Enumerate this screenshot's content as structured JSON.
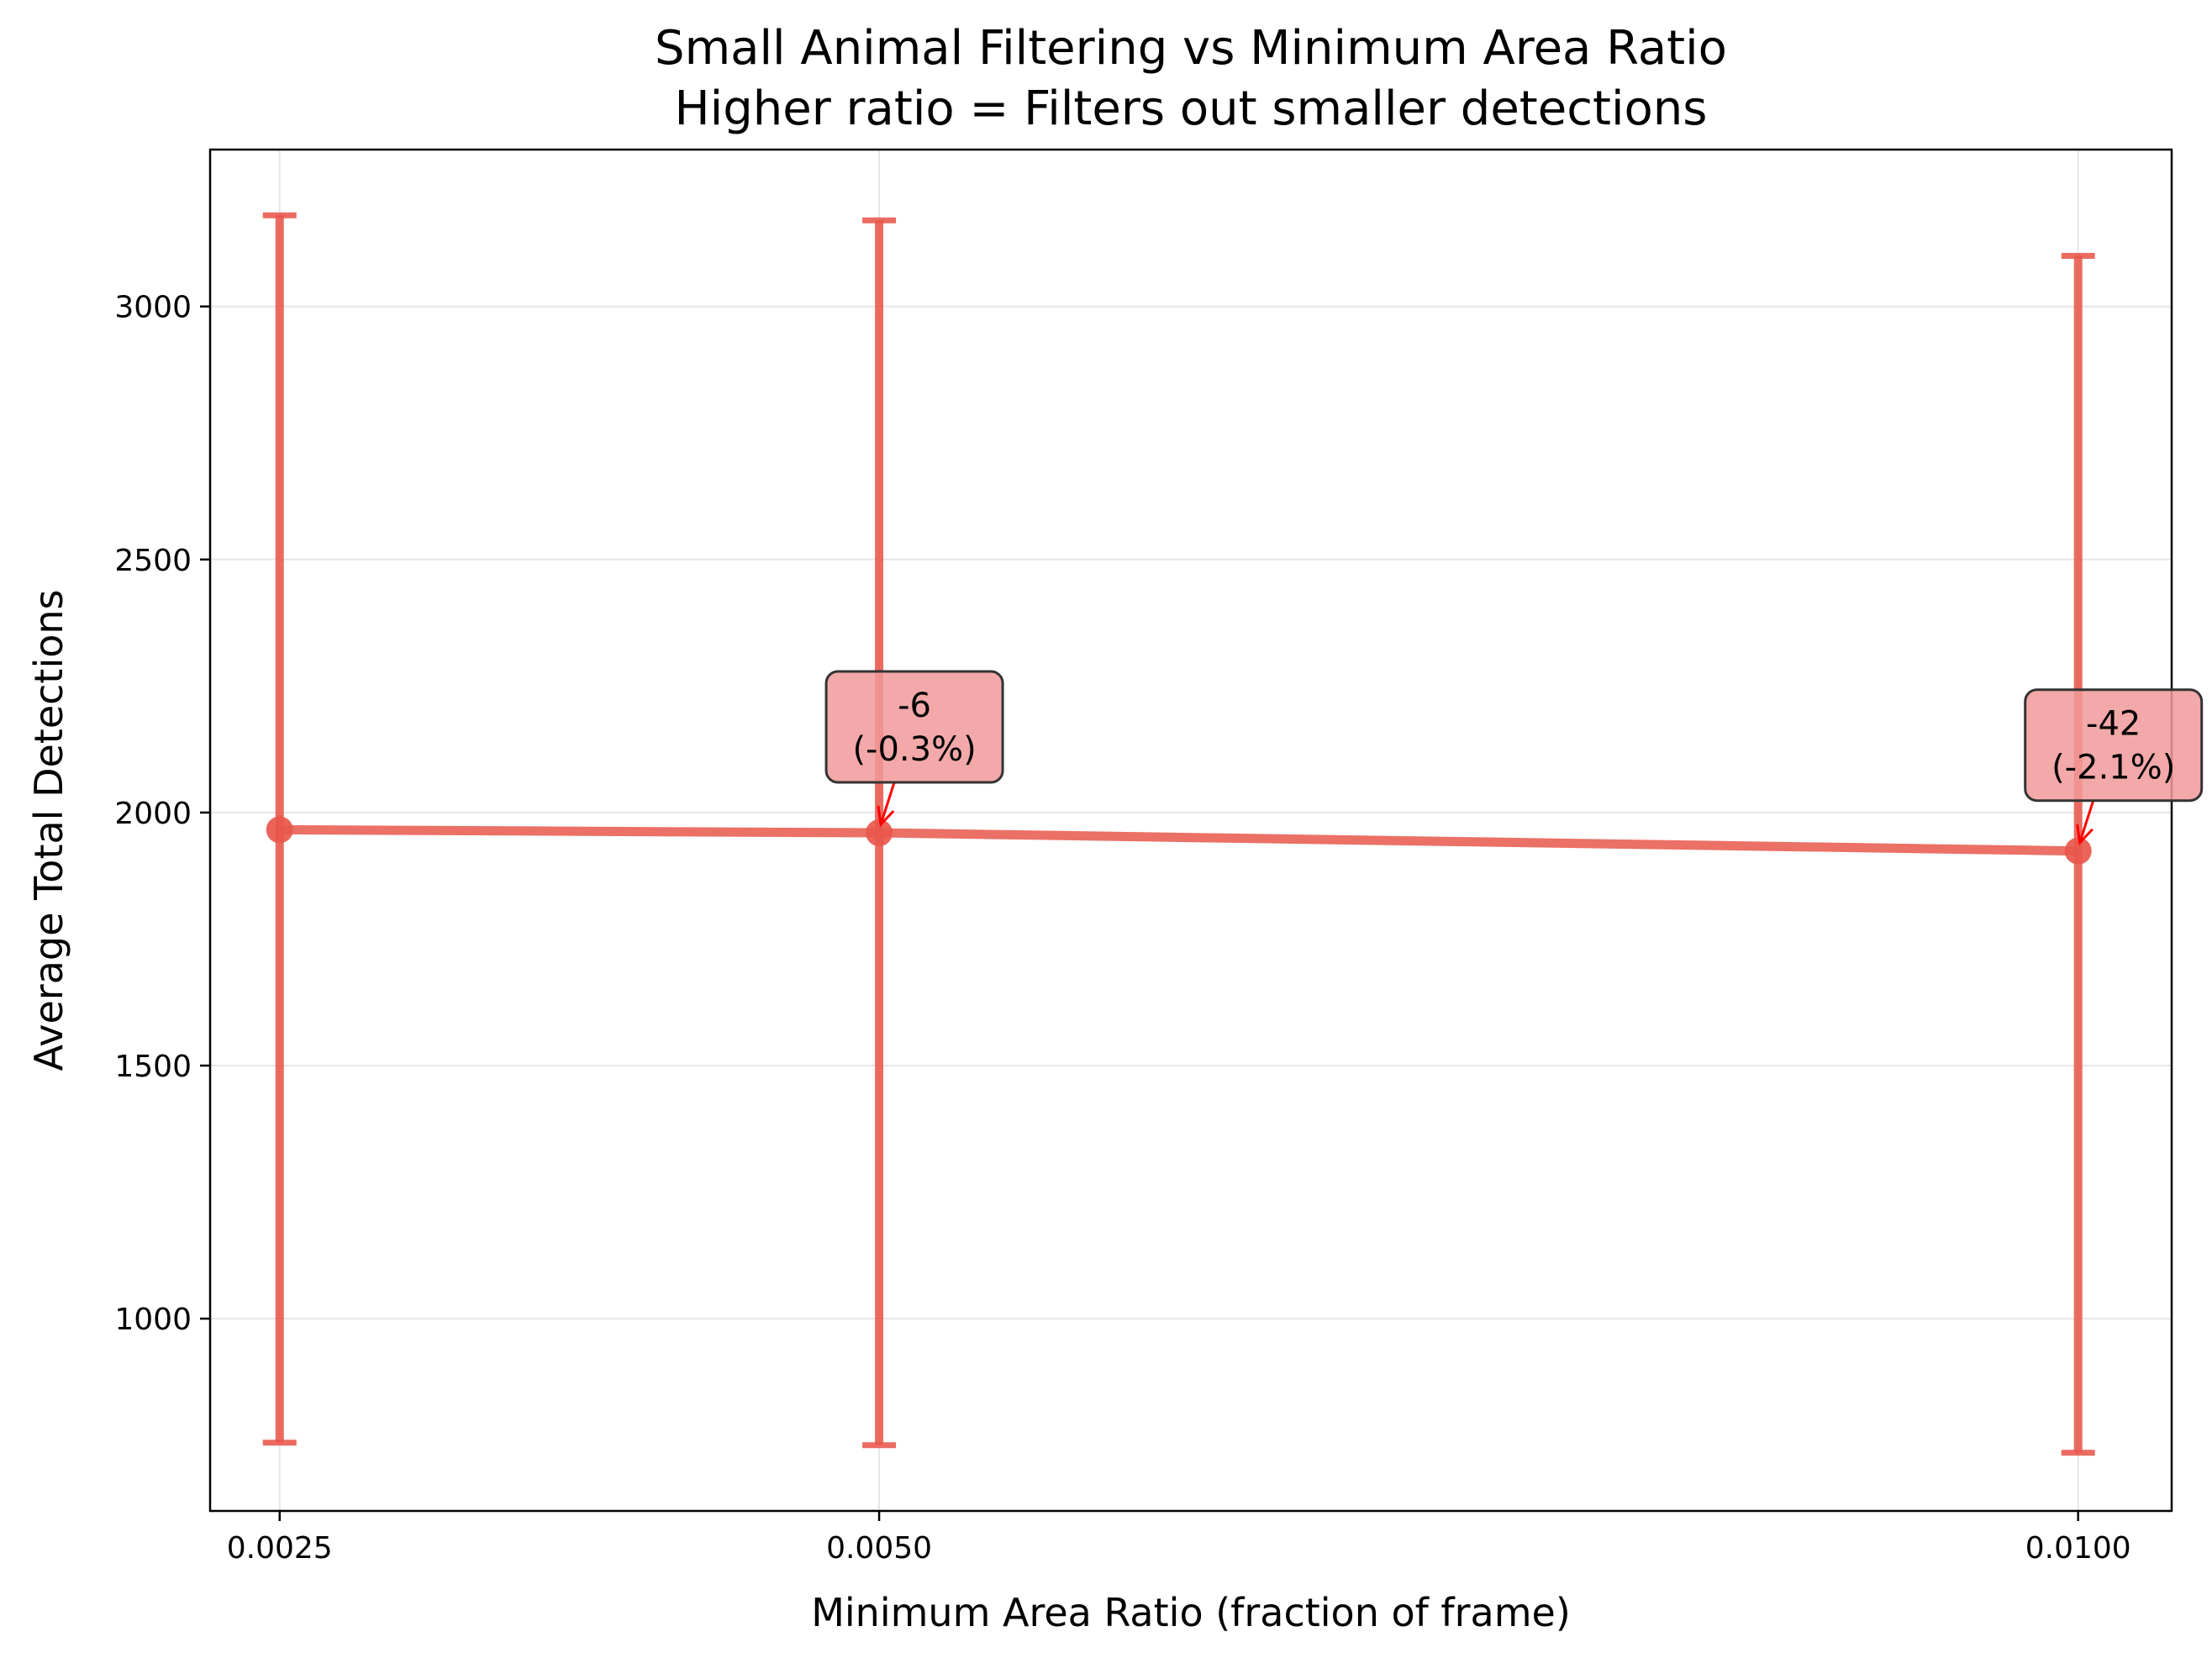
{
  "chart_data": {
    "type": "line",
    "title": "Small Animal Filtering vs Minimum Area Ratio",
    "subtitle": "Higher ratio = Filters out smaller detections",
    "xlabel": "Minimum Area Ratio (fraction of frame)",
    "ylabel": "Average Total Detections",
    "x": [
      0.0025,
      0.005,
      0.01
    ],
    "x_tick_labels": [
      "0.0025",
      "0.0050",
      "0.0100"
    ],
    "y_ticks": [
      1000,
      1500,
      2000,
      2500,
      3000
    ],
    "ylim": [
      620,
      3310
    ],
    "xlim": [
      0.00221,
      0.01039
    ],
    "grid": true,
    "series": [
      {
        "values": [
          1966,
          1960,
          1924
        ],
        "error_low": [
          755,
          750,
          735
        ],
        "error_high": [
          3180,
          3170,
          3100
        ],
        "color": "#e8574b"
      }
    ],
    "annotations": [
      {
        "x": 0.005,
        "y": 1960,
        "line1": "-6",
        "line2": "(-0.3%)"
      },
      {
        "x": 0.01,
        "y": 1924,
        "line1": "-42",
        "line2": "(-2.1%)"
      }
    ],
    "colors": {
      "line": "#e8574b",
      "annotation_box": "#f19a9a",
      "arrow": "#ff0000",
      "grid": "#e6e6e6"
    }
  }
}
